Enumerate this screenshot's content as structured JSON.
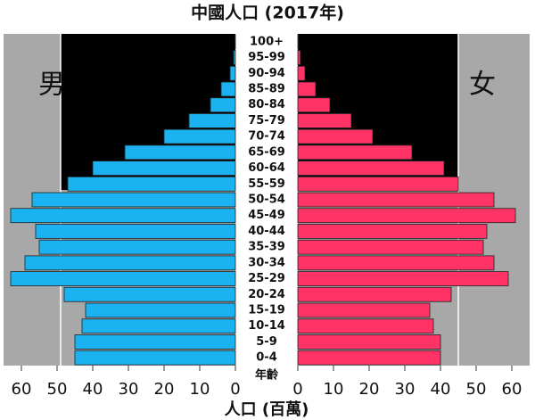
{
  "chart_data": {
    "type": "pyramid",
    "title": "中國人口 (2017年)",
    "x_label": "人口 (百萬)",
    "y_label": "年齡",
    "categories": [
      "0-4",
      "5-9",
      "10-14",
      "15-19",
      "20-24",
      "25-29",
      "30-34",
      "35-39",
      "40-44",
      "45-49",
      "50-54",
      "55-59",
      "60-64",
      "65-69",
      "70-74",
      "75-79",
      "80-84",
      "85-89",
      "90-94",
      "95-99",
      "100+"
    ],
    "series": [
      {
        "name": "男",
        "color": "#1ab2f0",
        "side": "left",
        "values": [
          45,
          45,
          43,
          42,
          48,
          63,
          59,
          55,
          56,
          63,
          57,
          47,
          40,
          31,
          20,
          13,
          7,
          4,
          1.5,
          0.5,
          0.1
        ]
      },
      {
        "name": "女",
        "color": "#ff3366",
        "side": "right",
        "values": [
          40,
          40,
          38,
          37,
          43,
          59,
          55,
          52,
          53,
          61,
          55,
          45,
          41,
          32,
          21,
          15,
          9,
          5,
          2,
          0.7,
          0.2
        ]
      }
    ],
    "xlim": [
      0,
      65
    ],
    "xticks": [
      0,
      10,
      20,
      30,
      40,
      50,
      60
    ]
  }
}
